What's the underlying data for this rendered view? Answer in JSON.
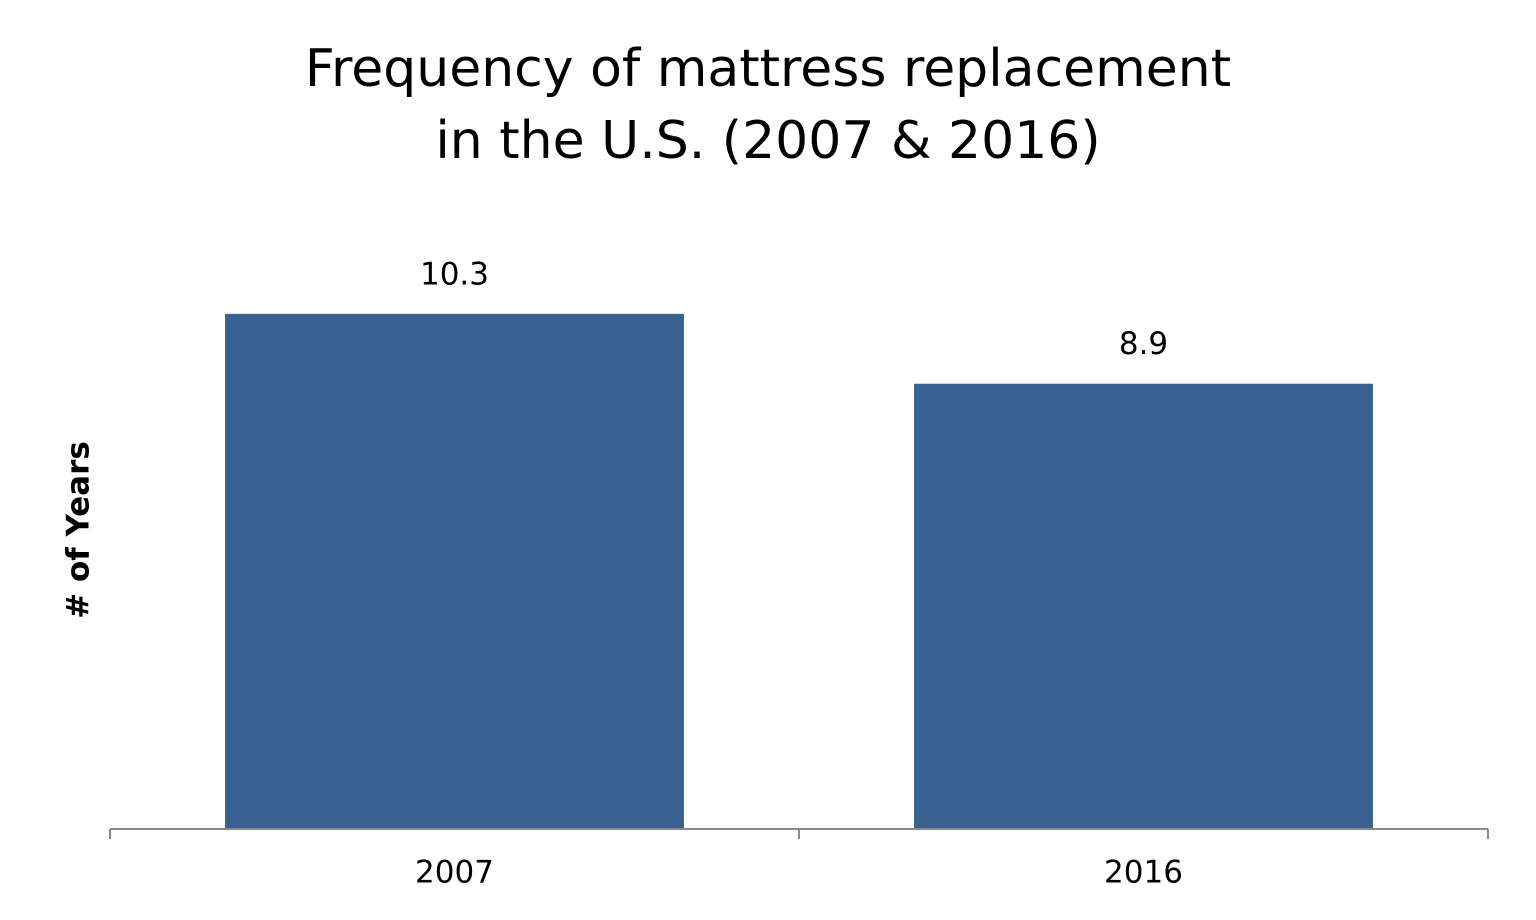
{
  "chart_data": {
    "type": "bar",
    "title": [
      "Frequency of mattress replacement",
      "in the U.S. (2007 & 2016)"
    ],
    "y_label": "# of Years",
    "categories": [
      "2007",
      "2016"
    ],
    "values": [
      10.3,
      8.9
    ],
    "color": "#386090",
    "ylim": [
      0,
      12
    ]
  }
}
